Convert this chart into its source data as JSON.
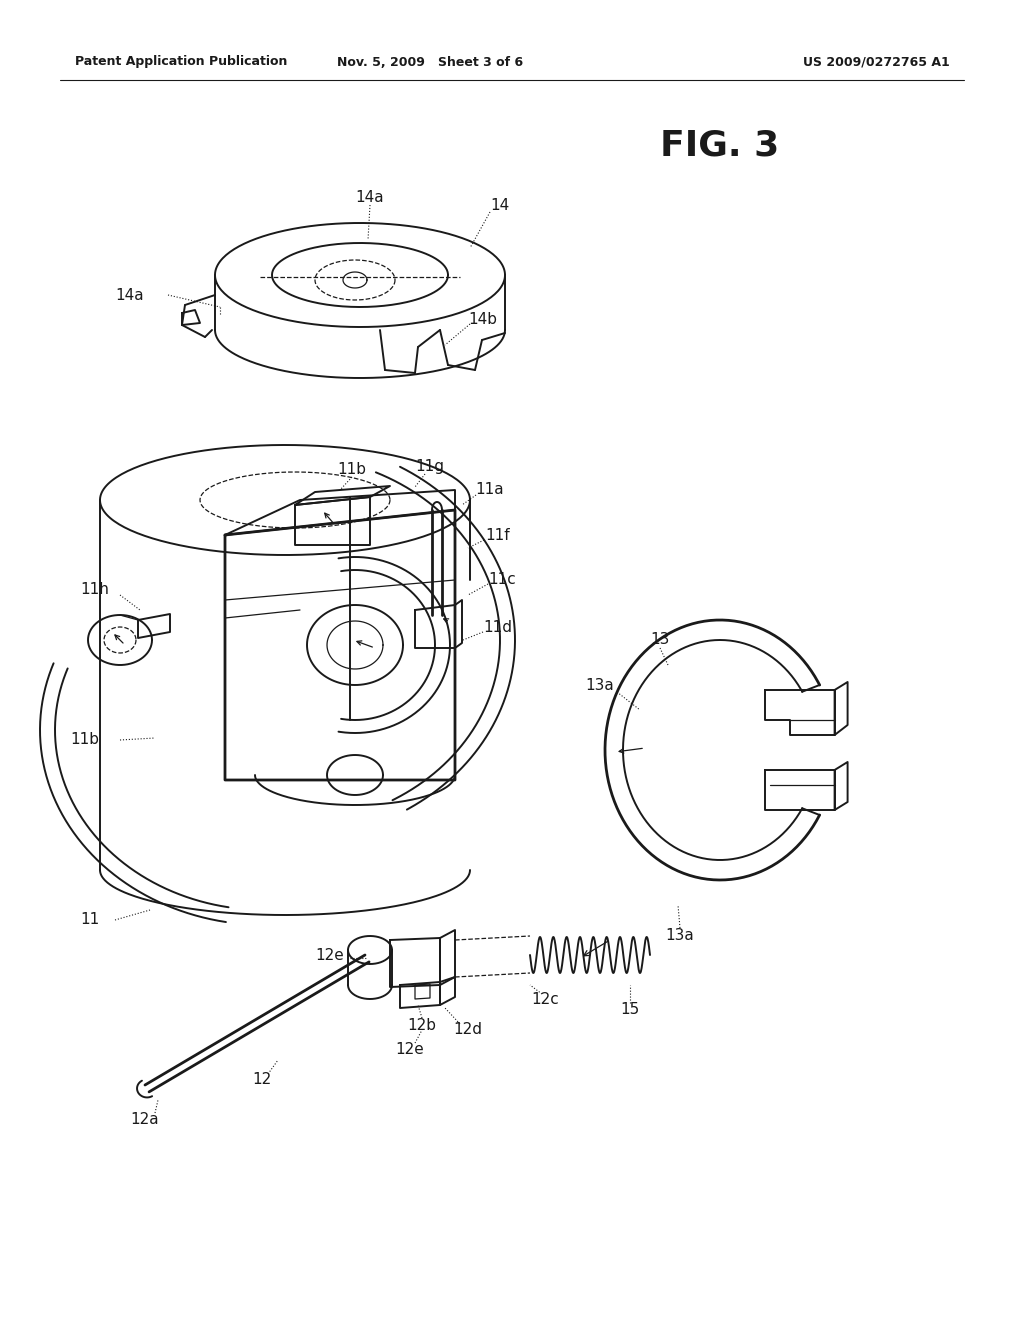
{
  "header_left": "Patent Application Publication",
  "header_mid": "Nov. 5, 2009   Sheet 3 of 6",
  "header_right": "US 2009/0272765 A1",
  "figure_label": "FIG. 3",
  "bg": "#ffffff",
  "lc": "#1a1a1a",
  "lc2": "#333333",
  "lw": 1.4,
  "lw_thin": 0.9,
  "lw_thick": 2.0
}
